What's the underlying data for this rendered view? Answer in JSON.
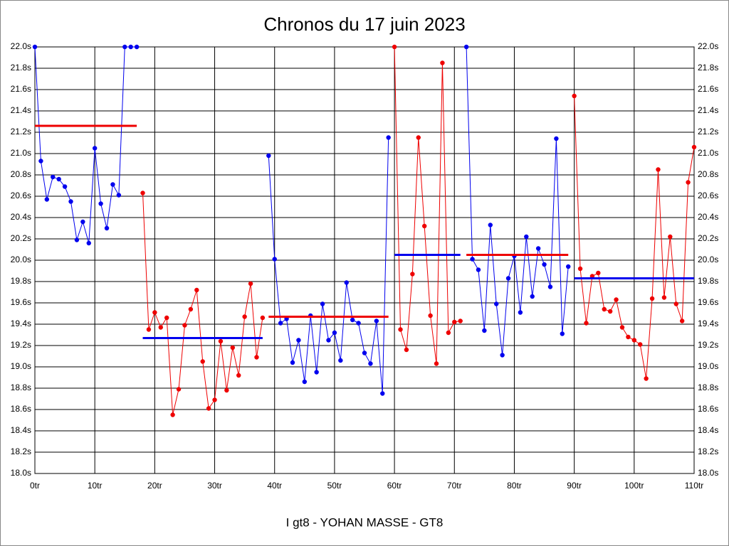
{
  "chart_data": {
    "type": "line",
    "title": "Chronos du 17 juin 2023",
    "x_label": "I gt8 - YOHAN MASSE - GT8",
    "xlim": [
      0,
      110
    ],
    "ylim": [
      18.0,
      22.0
    ],
    "grid": true,
    "xticks": [
      {
        "value": 0,
        "label": "0tr"
      },
      {
        "value": 10,
        "label": "10tr"
      },
      {
        "value": 20,
        "label": "20tr"
      },
      {
        "value": 30,
        "label": "30tr"
      },
      {
        "value": 40,
        "label": "40tr"
      },
      {
        "value": 50,
        "label": "50tr"
      },
      {
        "value": 60,
        "label": "60tr"
      },
      {
        "value": 70,
        "label": "70tr"
      },
      {
        "value": 80,
        "label": "80tr"
      },
      {
        "value": 90,
        "label": "90tr"
      },
      {
        "value": 100,
        "label": "100tr"
      },
      {
        "value": 110,
        "label": "110tr"
      }
    ],
    "yticks": [
      {
        "value": 18.0,
        "label": "18.0s"
      },
      {
        "value": 18.2,
        "label": "18.2s"
      },
      {
        "value": 18.4,
        "label": "18.4s"
      },
      {
        "value": 18.6,
        "label": "18.6s"
      },
      {
        "value": 18.8,
        "label": "18.8s"
      },
      {
        "value": 19.0,
        "label": "19.0s"
      },
      {
        "value": 19.2,
        "label": "19.2s"
      },
      {
        "value": 19.4,
        "label": "19.4s"
      },
      {
        "value": 19.6,
        "label": "19.6s"
      },
      {
        "value": 19.8,
        "label": "19.8s"
      },
      {
        "value": 20.0,
        "label": "20.0s"
      },
      {
        "value": 20.2,
        "label": "20.2s"
      },
      {
        "value": 20.4,
        "label": "20.4s"
      },
      {
        "value": 20.6,
        "label": "20.6s"
      },
      {
        "value": 20.8,
        "label": "20.8s"
      },
      {
        "value": 21.0,
        "label": "21.0s"
      },
      {
        "value": 21.2,
        "label": "21.2s"
      },
      {
        "value": 21.4,
        "label": "21.4s"
      },
      {
        "value": 21.6,
        "label": "21.6s"
      },
      {
        "value": 21.8,
        "label": "21.8s"
      },
      {
        "value": 22.0,
        "label": "22.0s"
      }
    ],
    "series": [
      {
        "color": "#0000ee",
        "x": [
          0,
          1,
          2,
          3,
          4,
          5,
          6,
          7,
          8,
          9,
          10,
          11,
          12,
          13,
          14,
          15,
          16,
          17
        ],
        "values": [
          22.0,
          20.93,
          20.57,
          20.78,
          20.76,
          20.69,
          20.55,
          20.19,
          20.36,
          20.16,
          21.05,
          20.53,
          20.3,
          20.71,
          20.61,
          22.0,
          22.0,
          22.0
        ]
      },
      {
        "color": "#ee0000",
        "x": [
          18,
          19,
          20,
          21,
          22,
          23,
          24,
          25,
          26,
          27,
          28,
          29,
          30,
          31,
          32,
          33,
          34,
          35,
          36,
          37,
          38
        ],
        "values": [
          20.63,
          19.35,
          19.51,
          19.37,
          19.46,
          18.55,
          18.79,
          19.39,
          19.54,
          19.72,
          19.05,
          18.61,
          18.69,
          19.24,
          18.78,
          19.18,
          18.92,
          19.47,
          19.78,
          19.09,
          19.46
        ]
      },
      {
        "color": "#0000ee",
        "x": [
          39,
          40,
          41,
          42,
          43,
          44,
          45,
          46,
          47,
          48,
          49,
          50,
          51,
          52,
          53,
          54,
          55,
          56,
          57,
          58,
          59
        ],
        "values": [
          20.98,
          20.01,
          19.41,
          19.45,
          19.04,
          19.25,
          18.86,
          19.48,
          18.95,
          19.59,
          19.25,
          19.32,
          19.06,
          19.79,
          19.44,
          19.41,
          19.13,
          19.03,
          19.43,
          18.75,
          21.15
        ]
      },
      {
        "color": "#ee0000",
        "x": [
          60,
          61,
          62,
          63,
          64,
          65,
          66,
          67,
          68,
          69,
          70,
          71
        ],
        "values": [
          22.0,
          19.35,
          19.16,
          19.87,
          21.15,
          20.32,
          19.48,
          19.03,
          21.85,
          19.32,
          19.42,
          19.43
        ]
      },
      {
        "color": "#0000ee",
        "x": [
          72,
          73,
          74,
          75,
          76,
          77,
          78,
          79,
          80,
          81,
          82,
          83,
          84,
          85,
          86,
          87,
          88,
          89
        ],
        "values": [
          22.0,
          20.01,
          19.91,
          19.34,
          20.33,
          19.59,
          19.11,
          19.83,
          20.04,
          19.51,
          20.22,
          19.66,
          20.11,
          19.96,
          19.75,
          21.14,
          19.31,
          19.94
        ]
      },
      {
        "color": "#ee0000",
        "x": [
          90,
          91,
          92,
          93,
          94,
          95,
          96,
          97,
          98,
          99,
          100,
          101,
          102,
          103,
          104,
          105,
          106,
          107,
          108,
          109,
          110
        ],
        "values": [
          21.54,
          19.92,
          19.41,
          19.85,
          19.88,
          19.54,
          19.52,
          19.63,
          19.37,
          19.28,
          19.25,
          19.21,
          18.89,
          19.64,
          20.85,
          19.65,
          20.22,
          19.59,
          19.43,
          20.73,
          21.06
        ]
      }
    ],
    "averages": [
      {
        "color": "#ee0000",
        "x": [
          0,
          17
        ],
        "value": 21.26
      },
      {
        "color": "#0000ee",
        "x": [
          18,
          38
        ],
        "value": 19.27
      },
      {
        "color": "#ee0000",
        "x": [
          39,
          59
        ],
        "value": 19.47
      },
      {
        "color": "#0000ee",
        "x": [
          60,
          71
        ],
        "value": 20.05
      },
      {
        "color": "#ee0000",
        "x": [
          72,
          89
        ],
        "value": 20.05
      },
      {
        "color": "#0000ee",
        "x": [
          90,
          110
        ],
        "value": 19.83
      }
    ]
  }
}
